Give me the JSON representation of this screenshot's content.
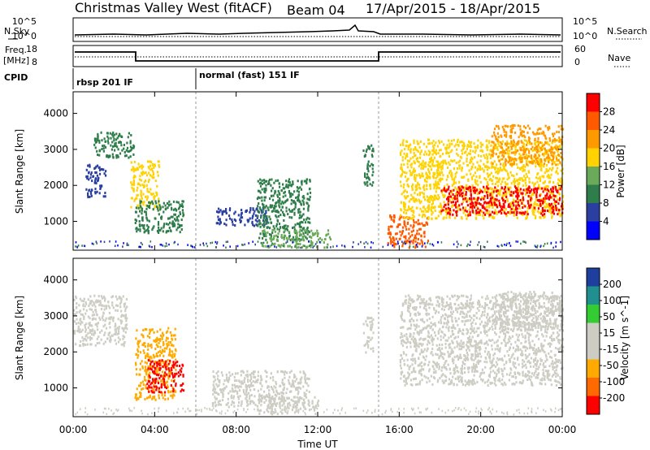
{
  "header": {
    "station": "Christmas Valley West (fitACF)",
    "beam": "Beam 04",
    "date_range": "17/Apr/2015 - 18/Apr/2015"
  },
  "top_panels": {
    "nsky_label": "N.Sky",
    "nsearch_label": "N.Search",
    "noise_ticks_left": [
      "10^5",
      "10^0"
    ],
    "noise_ticks_right": [
      "10^5",
      "10^0"
    ],
    "freq_label": "Freq.",
    "freq_unit": "[MHz]",
    "freq_ticks": [
      "18",
      "8"
    ],
    "nave_label": "Nave",
    "nave_ticks": [
      "60",
      "0"
    ],
    "cpid_label": "CPID",
    "cpid_modes": [
      "rbsp 201 IF",
      "normal (fast) 151 IF"
    ]
  },
  "colors": {
    "power_scale": [
      "#0000ff",
      "#2a3f9f",
      "#2e7d4a",
      "#6aaa5a",
      "#ffd200",
      "#ff9900",
      "#ff5a00",
      "#ff0000"
    ],
    "velocity_scale": [
      "#ff0000",
      "#ff6a00",
      "#ffaa00",
      "#cdcdc4",
      "#cdcdc4",
      "#33cc33",
      "#1f8f8f",
      "#1f3f9f"
    ]
  },
  "chart_data": [
    {
      "type": "heatmap",
      "name": "power",
      "ylabel": "Slant Range [km]",
      "yticks": [
        "1000",
        "2000",
        "3000",
        "4000"
      ],
      "ylim": [
        200,
        4600
      ],
      "xlim": [
        0,
        24
      ],
      "colorbar_label": "Power [dB]",
      "colorbar_ticks": [
        "4",
        "8",
        "12",
        "16",
        "20",
        "24",
        "28"
      ],
      "clim": [
        0,
        32
      ],
      "regions": [
        {
          "t0": 0.6,
          "t1": 1.6,
          "r0": 1700,
          "r1": 2600,
          "value": 6
        },
        {
          "t0": 1.0,
          "t1": 3.0,
          "r0": 2800,
          "r1": 3500,
          "value": 8
        },
        {
          "t0": 2.8,
          "t1": 4.2,
          "r0": 1400,
          "r1": 2700,
          "value": 18
        },
        {
          "t0": 3.0,
          "t1": 5.4,
          "r0": 700,
          "r1": 1600,
          "value": 8
        },
        {
          "t0": 7.0,
          "t1": 9.5,
          "r0": 900,
          "r1": 1400,
          "value": 5
        },
        {
          "t0": 9.0,
          "t1": 11.6,
          "r0": 500,
          "r1": 2200,
          "value": 9
        },
        {
          "t0": 9.2,
          "t1": 12.6,
          "r0": 300,
          "r1": 800,
          "value": 14
        },
        {
          "t0": 14.2,
          "t1": 14.7,
          "r0": 2000,
          "r1": 3200,
          "value": 8
        },
        {
          "t0": 15.4,
          "t1": 17.4,
          "r0": 300,
          "r1": 1200,
          "value": 24
        },
        {
          "t0": 16.0,
          "t1": 24.0,
          "r0": 1100,
          "r1": 3300,
          "value": 18
        },
        {
          "t0": 18.0,
          "t1": 24.0,
          "r0": 1200,
          "r1": 2000,
          "value": 28
        },
        {
          "t0": 20.5,
          "t1": 24.0,
          "r0": 2600,
          "r1": 3700,
          "value": 20
        }
      ]
    },
    {
      "type": "heatmap",
      "name": "velocity",
      "ylabel": "Slant Range [km]",
      "yticks": [
        "1000",
        "2000",
        "3000",
        "4000"
      ],
      "ylim": [
        200,
        4600
      ],
      "xlim": [
        0,
        24
      ],
      "xlabel": "Time UT",
      "xticks": [
        "00:00",
        "04:00",
        "08:00",
        "12:00",
        "16:00",
        "20:00",
        "00:00"
      ],
      "colorbar_label": "Velocity [m s^-1]",
      "colorbar_ticks": [
        "200",
        "100",
        "50",
        "15",
        "-15",
        "-50",
        "-100",
        "-200"
      ],
      "clim": [
        -250,
        250
      ],
      "regions": [
        {
          "t0": 0.0,
          "t1": 2.6,
          "r0": 2200,
          "r1": 3600,
          "value": 0
        },
        {
          "t0": 3.0,
          "t1": 5.0,
          "r0": 700,
          "r1": 2700,
          "value": -90
        },
        {
          "t0": 3.6,
          "t1": 5.4,
          "r0": 900,
          "r1": 1800,
          "value": -220
        },
        {
          "t0": 6.8,
          "t1": 11.6,
          "r0": 500,
          "r1": 1500,
          "value": 60
        },
        {
          "t0": 9.0,
          "t1": 12.0,
          "r0": 300,
          "r1": 800,
          "value": -30
        },
        {
          "t0": 14.2,
          "t1": 14.7,
          "r0": 2000,
          "r1": 3000,
          "value": 40
        },
        {
          "t0": 16.0,
          "t1": 24.0,
          "r0": 1100,
          "r1": 3600,
          "value": 0
        },
        {
          "t0": 20.5,
          "t1": 24.0,
          "r0": 2600,
          "r1": 3700,
          "value": 0
        }
      ]
    }
  ]
}
